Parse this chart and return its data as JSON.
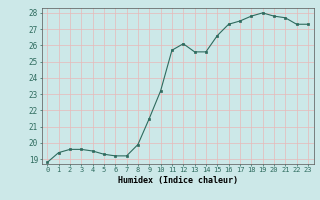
{
  "x": [
    0,
    1,
    2,
    3,
    4,
    5,
    6,
    7,
    8,
    9,
    10,
    11,
    12,
    13,
    14,
    15,
    16,
    17,
    18,
    19,
    20,
    21,
    22,
    23
  ],
  "y": [
    18.8,
    19.4,
    19.6,
    19.6,
    19.5,
    19.3,
    19.2,
    19.2,
    19.9,
    21.5,
    23.2,
    25.7,
    26.1,
    25.6,
    25.6,
    26.6,
    27.3,
    27.5,
    27.8,
    28.0,
    27.8,
    27.7,
    27.3,
    27.3
  ],
  "xlabel": "Humidex (Indice chaleur)",
  "xlim_min": -0.5,
  "xlim_max": 23.5,
  "ylim_min": 18.7,
  "ylim_max": 28.3,
  "yticks": [
    19,
    20,
    21,
    22,
    23,
    24,
    25,
    26,
    27,
    28
  ],
  "xticks": [
    0,
    1,
    2,
    3,
    4,
    5,
    6,
    7,
    8,
    9,
    10,
    11,
    12,
    13,
    14,
    15,
    16,
    17,
    18,
    19,
    20,
    21,
    22,
    23
  ],
  "line_color": "#2e6b5e",
  "marker_color": "#2e6b5e",
  "bg_color": "#cce8e8",
  "grid_color": "#e8b8b8",
  "plot_bg": "#cce8e8"
}
